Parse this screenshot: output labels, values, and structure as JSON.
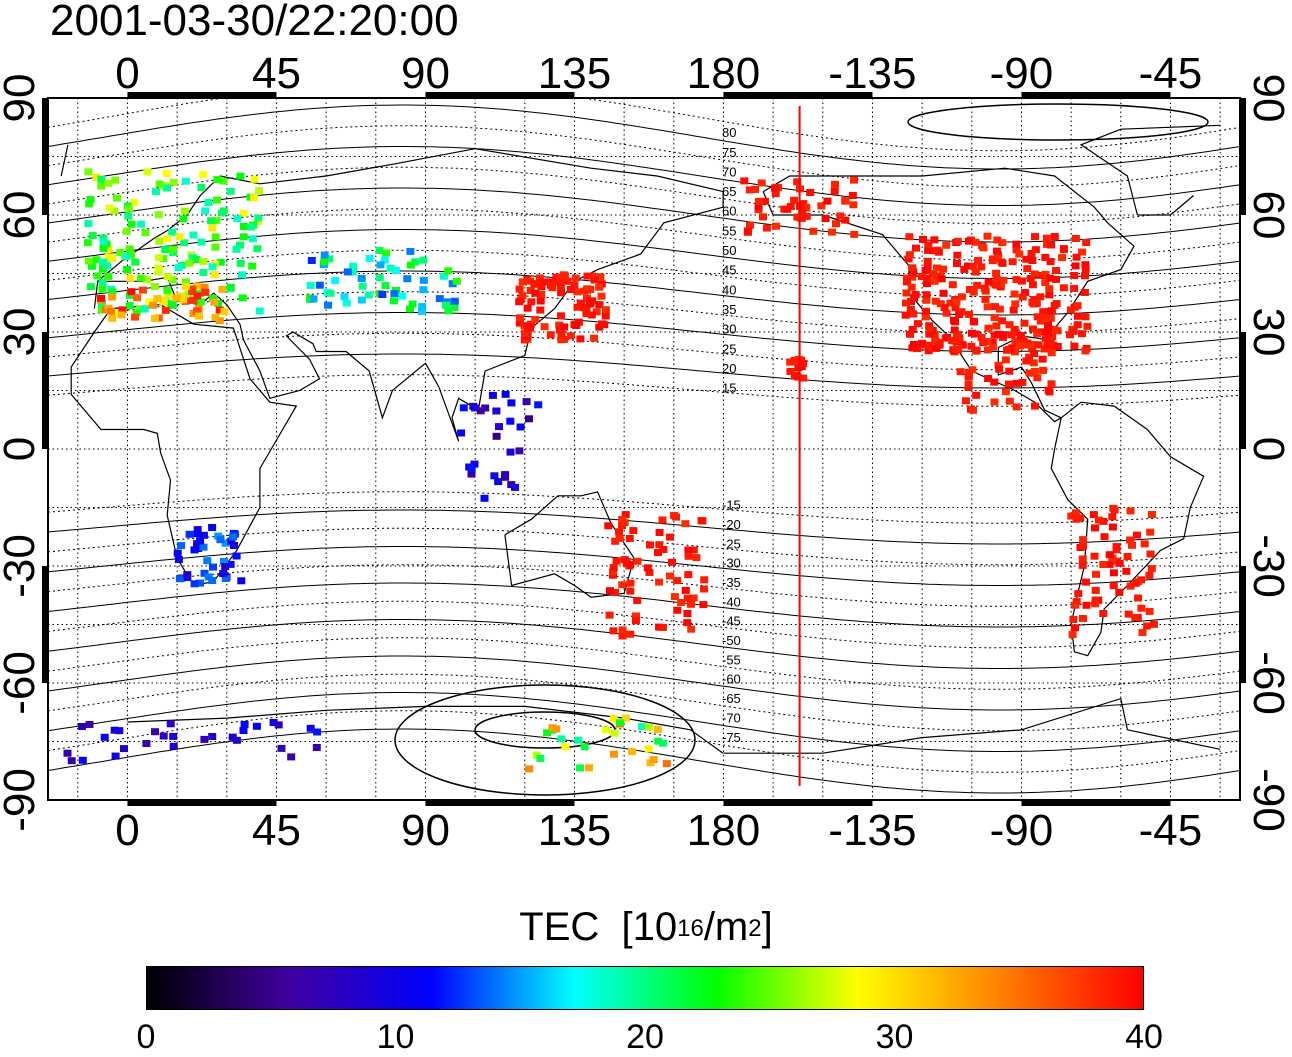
{
  "title": "2001-03-30/22:20:00",
  "map": {
    "top_lon_ticks": [
      "0",
      "45",
      "90",
      "135",
      "180",
      "-135",
      "-90",
      "-45"
    ],
    "bottom_lon_ticks": [
      "0",
      "45",
      "90",
      "135",
      "180",
      "-135",
      "-90",
      "-45"
    ],
    "left_lat_ticks": [
      "90",
      "60",
      "30",
      "0",
      "-30",
      "-60",
      "-90"
    ],
    "right_lat_ticks": [
      "90",
      "60",
      "30",
      "0",
      "-30",
      "-60",
      "-90"
    ],
    "contour_labels": [
      "80",
      "75",
      "70",
      "65",
      "60",
      "55",
      "50",
      "45",
      "40",
      "35",
      "30",
      "25",
      "20",
      "15",
      "-15",
      "-20",
      "-25",
      "-30",
      "-35",
      "-40",
      "-45",
      "-50",
      "-55",
      "-60",
      "-65",
      "-70",
      "-75"
    ],
    "terminator_lon": -157,
    "colors": {
      "marker_line": "#ff0000"
    }
  },
  "colorbar": {
    "label_main": "TEC",
    "label_unit_pre": "[10",
    "label_unit_exp": "16",
    "label_unit_mid": "/m",
    "label_unit_exp2": "2",
    "label_unit_post": "]",
    "ticks": [
      "0",
      "10",
      "20",
      "30",
      "40"
    ],
    "min": 0,
    "max": 40,
    "colors": [
      "#000000",
      "#4000a0",
      "#0000ff",
      "#00ffff",
      "#00ff00",
      "#ffff00",
      "#ff8000",
      "#ff0000"
    ]
  }
}
